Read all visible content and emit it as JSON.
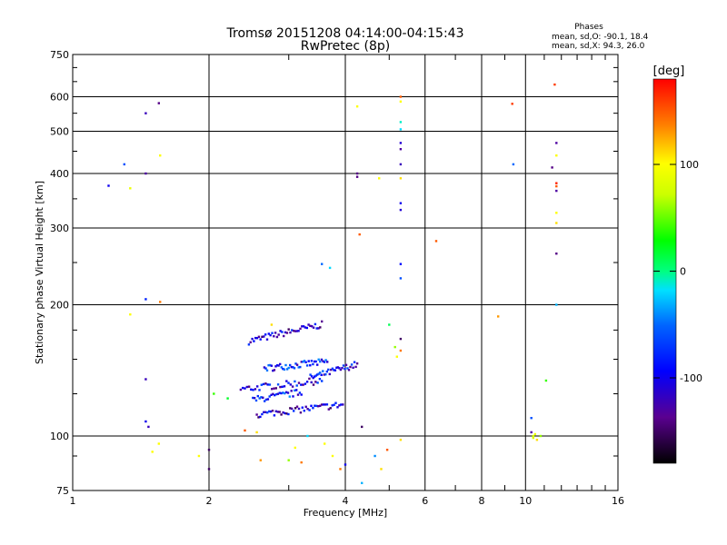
{
  "chart_data": {
    "type": "scatter",
    "title": "Tromsø 20151208 04:14:00-04:15:43",
    "subtitle": "RwPretec (8p)",
    "stats": {
      "heading": "Phases",
      "line1": "mean, sd,O: -90.1, 18.4",
      "line2": "mean, sd,X:  94.3, 26.0"
    },
    "xlabel": "Frequency [MHz]",
    "ylabel": "Stationary phase Virtual Height [km]",
    "xscale": "log2",
    "yscale": "log",
    "xlim": [
      1,
      16
    ],
    "ylim": [
      75,
      750
    ],
    "xticks": [
      1,
      2,
      4,
      6,
      8,
      10,
      16
    ],
    "yticks": [
      75,
      100,
      200,
      300,
      400,
      500,
      600,
      750
    ],
    "grid": true,
    "colorbar": {
      "label": "[deg]",
      "range": [
        -180,
        180
      ],
      "ticks": [
        100,
        0,
        -100
      ]
    },
    "traces": [
      {
        "f0": 2.45,
        "f1": 3.55,
        "h0": 165,
        "h1": 180,
        "phase": -110,
        "n": 45
      },
      {
        "f0": 2.65,
        "f1": 3.65,
        "h0": 143,
        "h1": 148,
        "phase": -85,
        "n": 45
      },
      {
        "f0": 2.35,
        "f1": 3.55,
        "h0": 128,
        "h1": 134,
        "phase": -100,
        "n": 40
      },
      {
        "f0": 3.35,
        "f1": 4.25,
        "h0": 136,
        "h1": 146,
        "phase": -95,
        "n": 35
      },
      {
        "f0": 2.5,
        "f1": 3.2,
        "h0": 121,
        "h1": 126,
        "phase": -80,
        "n": 30
      },
      {
        "f0": 2.55,
        "f1": 3.95,
        "h0": 112,
        "h1": 118,
        "phase": -110,
        "n": 50
      }
    ],
    "points": [
      [
        1.2,
        375,
        -100
      ],
      [
        1.3,
        420,
        -60
      ],
      [
        1.34,
        370,
        90
      ],
      [
        1.34,
        190,
        100
      ],
      [
        1.45,
        550,
        -120
      ],
      [
        1.45,
        400,
        -130
      ],
      [
        1.45,
        206,
        -80
      ],
      [
        1.45,
        135,
        -120
      ],
      [
        1.45,
        108,
        -100
      ],
      [
        1.47,
        105,
        -120
      ],
      [
        1.55,
        580,
        -140
      ],
      [
        1.56,
        440,
        100
      ],
      [
        1.56,
        203,
        140
      ],
      [
        1.55,
        96,
        100
      ],
      [
        1.5,
        92,
        100
      ],
      [
        1.9,
        90,
        100
      ],
      [
        2.0,
        84,
        -150
      ],
      [
        2.0,
        93,
        -150
      ],
      [
        2.05,
        125,
        40
      ],
      [
        2.2,
        122,
        20
      ],
      [
        2.4,
        103,
        150
      ],
      [
        2.55,
        102,
        110
      ],
      [
        2.6,
        88,
        130
      ],
      [
        2.75,
        180,
        110
      ],
      [
        3.0,
        88,
        60
      ],
      [
        3.1,
        94,
        100
      ],
      [
        3.2,
        87,
        140
      ],
      [
        3.3,
        100,
        -20
      ],
      [
        3.6,
        96,
        100
      ],
      [
        3.75,
        90,
        100
      ],
      [
        3.9,
        84,
        140
      ],
      [
        4.0,
        86,
        -100
      ],
      [
        3.55,
        248,
        -50
      ],
      [
        3.7,
        243,
        -20
      ],
      [
        4.25,
        570,
        100
      ],
      [
        4.3,
        290,
        150
      ],
      [
        4.25,
        400,
        -140
      ],
      [
        4.25,
        393,
        -140
      ],
      [
        4.75,
        390,
        100
      ],
      [
        4.65,
        90,
        -40
      ],
      [
        4.8,
        84,
        110
      ],
      [
        4.35,
        105,
        -150
      ],
      [
        4.35,
        78,
        -30
      ],
      [
        4.95,
        93,
        150
      ],
      [
        5.0,
        180,
        10
      ],
      [
        5.15,
        160,
        60
      ],
      [
        5.2,
        152,
        100
      ],
      [
        5.3,
        600,
        150
      ],
      [
        5.3,
        585,
        100
      ],
      [
        5.3,
        525,
        -10
      ],
      [
        5.3,
        505,
        -20
      ],
      [
        5.3,
        470,
        -110
      ],
      [
        5.3,
        455,
        -130
      ],
      [
        5.3,
        420,
        -120
      ],
      [
        5.3,
        390,
        110
      ],
      [
        5.3,
        342,
        -100
      ],
      [
        5.3,
        330,
        -110
      ],
      [
        5.3,
        248,
        -90
      ],
      [
        5.3,
        230,
        -60
      ],
      [
        5.3,
        167,
        -150
      ],
      [
        5.3,
        157,
        140
      ],
      [
        5.3,
        98,
        110
      ],
      [
        6.35,
        280,
        150
      ],
      [
        8.7,
        188,
        130
      ],
      [
        9.35,
        578,
        160
      ],
      [
        9.4,
        420,
        -50
      ],
      [
        10.3,
        110,
        -60
      ],
      [
        10.3,
        102,
        -130
      ],
      [
        10.4,
        99,
        80
      ],
      [
        10.6,
        98,
        110
      ],
      [
        10.8,
        100,
        60
      ],
      [
        10.5,
        101,
        90
      ],
      [
        10.4,
        100,
        80
      ],
      [
        11.1,
        134,
        40
      ],
      [
        11.45,
        413,
        -140
      ],
      [
        11.6,
        640,
        160
      ],
      [
        11.7,
        470,
        -130
      ],
      [
        11.7,
        440,
        100
      ],
      [
        11.7,
        380,
        170
      ],
      [
        11.7,
        374,
        150
      ],
      [
        11.7,
        365,
        -130
      ],
      [
        11.7,
        325,
        100
      ],
      [
        11.7,
        308,
        110
      ],
      [
        11.7,
        262,
        -140
      ],
      [
        11.7,
        200,
        -30
      ]
    ]
  }
}
